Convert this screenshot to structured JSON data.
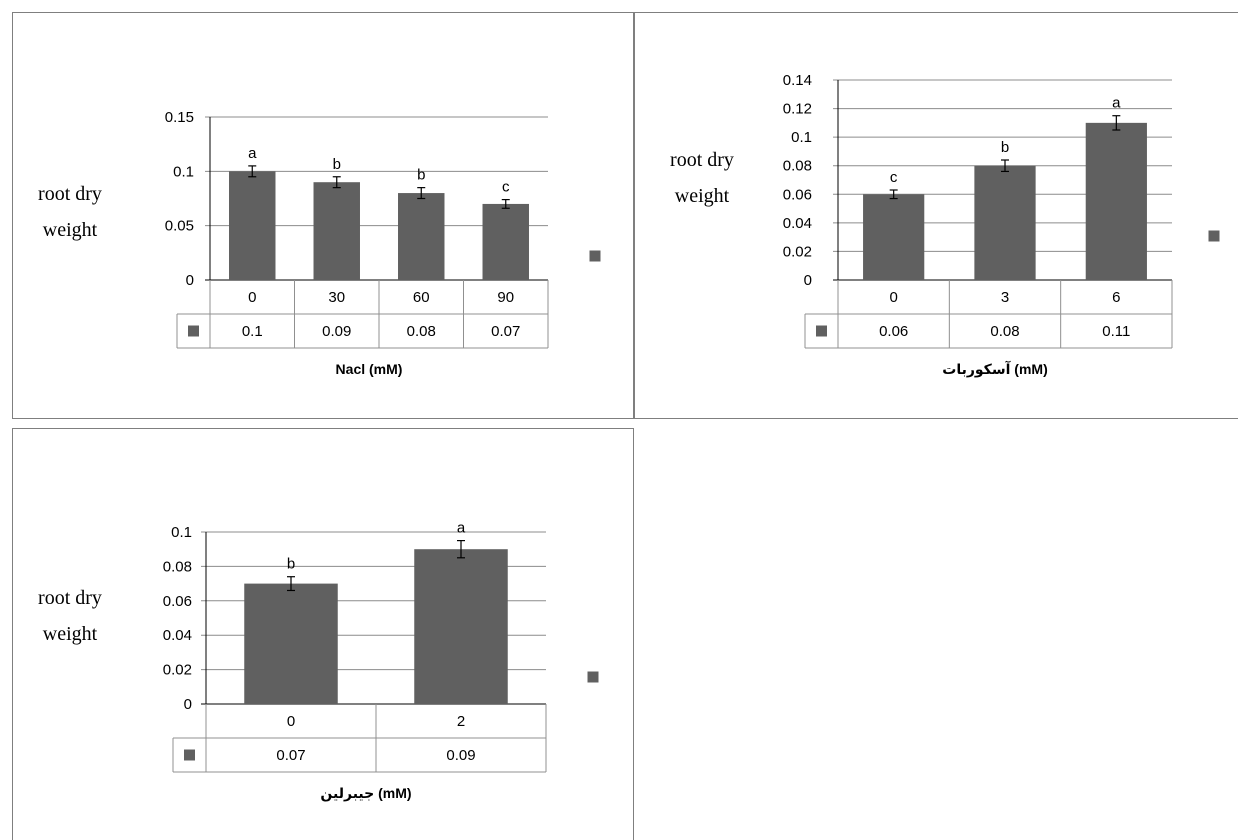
{
  "colors": {
    "bar": "#606060",
    "frame": "#7f7f7f",
    "grid": "#8c8c8c",
    "table_border": "#909090"
  },
  "chart_data": [
    {
      "type": "bar",
      "ylabel_lines": [
        "root dry",
        "weight"
      ],
      "xlabel": "Nacl (mM)",
      "categories": [
        "0",
        "30",
        "60",
        "90"
      ],
      "values": [
        0.1,
        0.09,
        0.08,
        0.07
      ],
      "value_labels": [
        "0.1",
        "0.09",
        "0.08",
        "0.07"
      ],
      "errors": [
        0.005,
        0.005,
        0.005,
        0.004
      ],
      "significance": [
        "a",
        "b",
        "b",
        "c"
      ],
      "ylim": [
        0,
        0.15
      ],
      "yticks": [
        "0",
        "0.05",
        "0.1",
        "0.15"
      ],
      "grid": true,
      "legend": "right"
    },
    {
      "type": "bar",
      "ylabel_lines": [
        "root dry",
        "weight"
      ],
      "xlabel": "آسکوربات (mM)",
      "categories": [
        "0",
        "3",
        "6"
      ],
      "values": [
        0.06,
        0.08,
        0.11
      ],
      "value_labels": [
        "0.06",
        "0.08",
        "0.11"
      ],
      "errors": [
        0.003,
        0.004,
        0.005
      ],
      "significance": [
        "c",
        "b",
        "a"
      ],
      "ylim": [
        0,
        0.14
      ],
      "yticks": [
        "0",
        "0.02",
        "0.04",
        "0.06",
        "0.08",
        "0.1",
        "0.12",
        "0.14"
      ],
      "grid": true,
      "legend": "right"
    },
    {
      "type": "bar",
      "ylabel_lines": [
        "root dry",
        "weight"
      ],
      "xlabel": "جیبرلین (mM)",
      "categories": [
        "0",
        "2"
      ],
      "values": [
        0.07,
        0.09
      ],
      "value_labels": [
        "0.07",
        "0.09"
      ],
      "errors": [
        0.004,
        0.005
      ],
      "significance": [
        "b",
        "a"
      ],
      "ylim": [
        0,
        0.1
      ],
      "yticks": [
        "0",
        "0.02",
        "0.04",
        "0.06",
        "0.08",
        "0.1"
      ],
      "grid": true,
      "legend": "right"
    }
  ]
}
